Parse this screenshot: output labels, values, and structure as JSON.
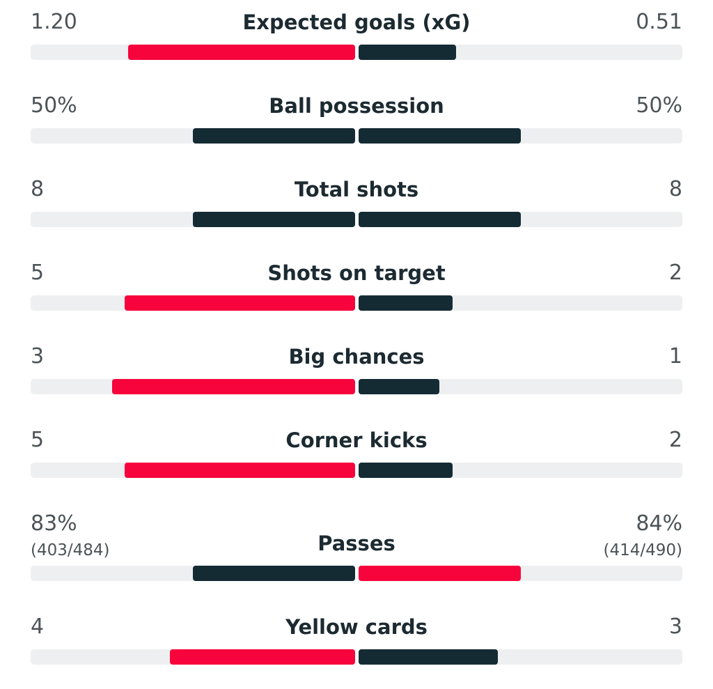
{
  "colors": {
    "accent": "#f7043d",
    "dark": "#142b34",
    "track": "#eeeff0"
  },
  "stats": [
    {
      "title": "Expected goals (xG)",
      "home": "1.20",
      "away": "0.51",
      "home_fill": 0.7,
      "away_fill": 0.3,
      "home_color": "accent",
      "away_color": "dark"
    },
    {
      "title": "Ball possession",
      "home": "50%",
      "away": "50%",
      "home_fill": 0.5,
      "away_fill": 0.5,
      "home_color": "dark",
      "away_color": "dark"
    },
    {
      "title": "Total shots",
      "home": "8",
      "away": "8",
      "home_fill": 0.5,
      "away_fill": 0.5,
      "home_color": "dark",
      "away_color": "dark"
    },
    {
      "title": "Shots on target",
      "home": "5",
      "away": "2",
      "home_fill": 0.71,
      "away_fill": 0.29,
      "home_color": "accent",
      "away_color": "dark"
    },
    {
      "title": "Big chances",
      "home": "3",
      "away": "1",
      "home_fill": 0.75,
      "away_fill": 0.25,
      "home_color": "accent",
      "away_color": "dark"
    },
    {
      "title": "Corner kicks",
      "home": "5",
      "away": "2",
      "home_fill": 0.71,
      "away_fill": 0.29,
      "home_color": "accent",
      "away_color": "dark"
    },
    {
      "title": "Passes",
      "home": "83%",
      "away": "84%",
      "home_sub": "(403/484)",
      "away_sub": "(414/490)",
      "home_fill": 0.5,
      "away_fill": 0.5,
      "home_color": "dark",
      "away_color": "accent"
    },
    {
      "title": "Yellow cards",
      "home": "4",
      "away": "3",
      "home_fill": 0.57,
      "away_fill": 0.43,
      "home_color": "accent",
      "away_color": "dark"
    }
  ]
}
